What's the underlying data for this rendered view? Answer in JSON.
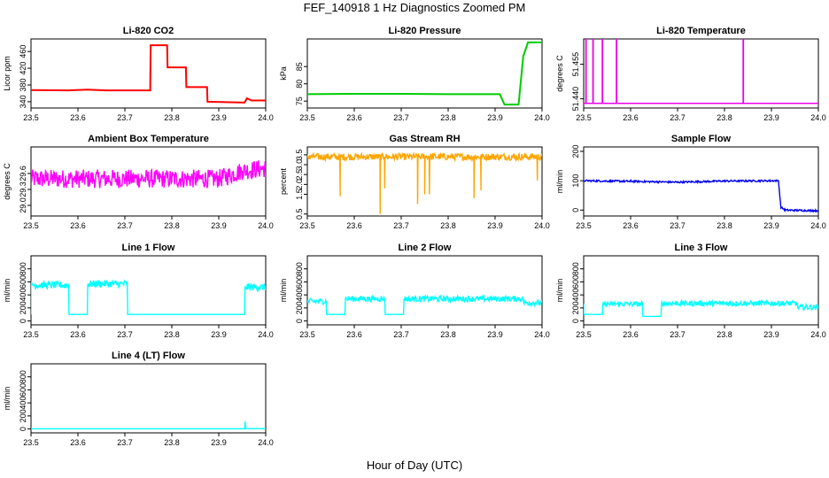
{
  "figure": {
    "title": "FEF_140918  1 Hz Diagnostics Zoomed PM",
    "xlabel": "Hour of Day (UTC)"
  },
  "chart_data": [
    {
      "type": "line",
      "title": "Li-820 CO2",
      "ylabel": "Licor ppm",
      "color": "#ff0000",
      "xlim": [
        23.5,
        24.0
      ],
      "ylim": [
        325,
        490
      ],
      "xticks": [
        "23.5",
        "23.6",
        "23.7",
        "23.8",
        "23.9",
        "24.0"
      ],
      "yticks": [
        "340",
        "380",
        "420",
        "460"
      ],
      "series": [
        {
          "x": [
            23.5,
            23.58,
            23.62,
            23.66,
            23.754,
            23.755,
            23.79,
            23.791,
            23.83,
            23.831,
            23.875,
            23.876,
            23.955,
            23.96,
            23.97,
            24.0
          ],
          "y": [
            368,
            367,
            369,
            367,
            367,
            475,
            475,
            422,
            422,
            375,
            375,
            340,
            338,
            348,
            343,
            343
          ]
        }
      ]
    },
    {
      "type": "line",
      "title": "Li-820 Pressure",
      "ylabel": "kPa",
      "color": "#00cc00",
      "xlim": [
        23.5,
        24.0
      ],
      "ylim": [
        73,
        93
      ],
      "xticks": [
        "23.5",
        "23.6",
        "23.7",
        "23.8",
        "23.9",
        "24.0"
      ],
      "yticks": [
        "75",
        "80",
        "85"
      ],
      "series": [
        {
          "x": [
            23.5,
            23.6,
            23.7,
            23.8,
            23.91,
            23.92,
            23.95,
            23.96,
            23.97,
            24.0
          ],
          "y": [
            77,
            77.1,
            77.1,
            77,
            77,
            74,
            74,
            88,
            92,
            92
          ]
        }
      ]
    },
    {
      "type": "line",
      "title": "Li-820 Temperature",
      "ylabel": "degrees C",
      "color": "#ee00ee",
      "xlim": [
        23.5,
        24.0
      ],
      "ylim": [
        51.436,
        51.466
      ],
      "xticks": [
        "23.5",
        "23.6",
        "23.7",
        "23.8",
        "23.9",
        "24.0"
      ],
      "yticks": [
        "51.440",
        "51.455"
      ],
      "spikes": [
        23.505,
        23.52,
        23.54,
        23.57,
        23.84
      ],
      "baseline": 51.438,
      "spike_top": 51.466
    },
    {
      "type": "line",
      "title": "Ambient Box Temperature",
      "ylabel": "degrees C",
      "color": "#ff00ff",
      "xlim": [
        23.5,
        24.0
      ],
      "ylim": [
        28.8,
        30.1
      ],
      "xticks": [
        "23.5",
        "23.6",
        "23.7",
        "23.8",
        "23.9",
        "24.0"
      ],
      "yticks": [
        "29.0",
        "29.3",
        "29.6"
      ],
      "series": [
        {
          "x": [
            23.5,
            23.6,
            23.7,
            23.8,
            23.9,
            23.95,
            24.0
          ],
          "y": [
            29.5,
            29.5,
            29.5,
            29.5,
            29.5,
            29.65,
            29.7
          ]
        }
      ],
      "noise_range": 0.35
    },
    {
      "type": "line",
      "title": "Gas Stream RH",
      "ylabel": "percent",
      "color": "#ffa500",
      "xlim": [
        23.5,
        24.0
      ],
      "ylim": [
        0.4,
        3.9
      ],
      "xticks": [
        "23.5",
        "23.6",
        "23.7",
        "23.8",
        "23.9",
        "24.0"
      ],
      "yticks": [
        "0.5",
        "1.5",
        "2.0",
        "2.5",
        "3.0",
        "3.5"
      ],
      "series": [
        {
          "x": [
            23.5,
            24.0
          ],
          "y": [
            3.4,
            3.4
          ]
        }
      ],
      "dips": [
        [
          23.57,
          1.4
        ],
        [
          23.655,
          0.5
        ],
        [
          23.665,
          1.8
        ],
        [
          23.735,
          1.0
        ],
        [
          23.75,
          1.5
        ],
        [
          23.76,
          1.5
        ],
        [
          23.855,
          1.3
        ],
        [
          23.87,
          1.7
        ],
        [
          23.99,
          2.2
        ]
      ],
      "noise_range": 0.35
    },
    {
      "type": "line",
      "title": "Sample Flow",
      "ylabel": "ml/min",
      "color": "#0000ee",
      "xlim": [
        23.5,
        24.0
      ],
      "ylim": [
        -20,
        215
      ],
      "xticks": [
        "23.5",
        "23.6",
        "23.7",
        "23.8",
        "23.9",
        "24.0"
      ],
      "yticks": [
        "0",
        "100",
        "200"
      ],
      "series": [
        {
          "x": [
            23.5,
            23.6,
            23.7,
            23.8,
            23.915,
            23.92,
            23.93,
            24.0
          ],
          "y": [
            100,
            98,
            95,
            99,
            100,
            10,
            0,
            -2
          ]
        }
      ],
      "noise_range": 6
    },
    {
      "type": "line",
      "title": "Line 1 Flow",
      "ylabel": "ml/min",
      "color": "#00ffff",
      "xlim": [
        23.5,
        24.0
      ],
      "ylim": [
        -60,
        1000
      ],
      "xticks": [
        "23.5",
        "23.6",
        "23.7",
        "23.8",
        "23.9",
        "24.0"
      ],
      "yticks": [
        "0",
        "200",
        "400",
        "600",
        "800"
      ],
      "series": [
        {
          "x": [
            23.5,
            23.5,
            23.58,
            23.581,
            23.62,
            23.621,
            23.705,
            23.706,
            23.955,
            23.956,
            24.0
          ],
          "y": [
            100,
            550,
            550,
            100,
            100,
            570,
            570,
            100,
            100,
            520,
            520
          ]
        }
      ],
      "noise_range": 110
    },
    {
      "type": "line",
      "title": "Line 2 Flow",
      "ylabel": "ml/min",
      "color": "#00ffff",
      "xlim": [
        23.5,
        24.0
      ],
      "ylim": [
        -60,
        1000
      ],
      "xticks": [
        "23.5",
        "23.6",
        "23.7",
        "23.8",
        "23.9",
        "24.0"
      ],
      "yticks": [
        "0",
        "200",
        "400",
        "600",
        "800"
      ],
      "series": [
        {
          "x": [
            23.5,
            23.54,
            23.541,
            23.58,
            23.581,
            23.665,
            23.666,
            23.705,
            23.706,
            23.96,
            23.961,
            24.0
          ],
          "y": [
            300,
            300,
            100,
            100,
            340,
            340,
            100,
            100,
            340,
            340,
            280,
            280
          ]
        }
      ],
      "noise_range": 90
    },
    {
      "type": "line",
      "title": "Line 3 Flow",
      "ylabel": "ml/min",
      "color": "#00ffff",
      "xlim": [
        23.5,
        24.0
      ],
      "ylim": [
        -60,
        1000
      ],
      "xticks": [
        "23.5",
        "23.6",
        "23.7",
        "23.8",
        "23.9",
        "24.0"
      ],
      "yticks": [
        "0",
        "200",
        "400",
        "600",
        "800"
      ],
      "series": [
        {
          "x": [
            23.5,
            23.5,
            23.54,
            23.541,
            23.625,
            23.626,
            23.665,
            23.666,
            23.955,
            23.956,
            24.0
          ],
          "y": [
            250,
            100,
            100,
            260,
            260,
            70,
            70,
            270,
            270,
            210,
            210
          ]
        }
      ],
      "noise_range": 80
    },
    {
      "type": "line",
      "title": "Line 4 (LT) Flow",
      "ylabel": "ml/min",
      "color": "#00ffff",
      "xlim": [
        23.5,
        24.0
      ],
      "ylim": [
        -60,
        1000
      ],
      "xticks": [
        "23.5",
        "23.6",
        "23.7",
        "23.8",
        "23.9",
        "24.0"
      ],
      "yticks": [
        "0",
        "200",
        "400",
        "600",
        "800"
      ],
      "series": [
        {
          "x": [
            23.5,
            23.955,
            23.956,
            23.957,
            24.0
          ],
          "y": [
            2,
            2,
            120,
            5,
            5
          ]
        }
      ],
      "noise_range": 6
    }
  ]
}
